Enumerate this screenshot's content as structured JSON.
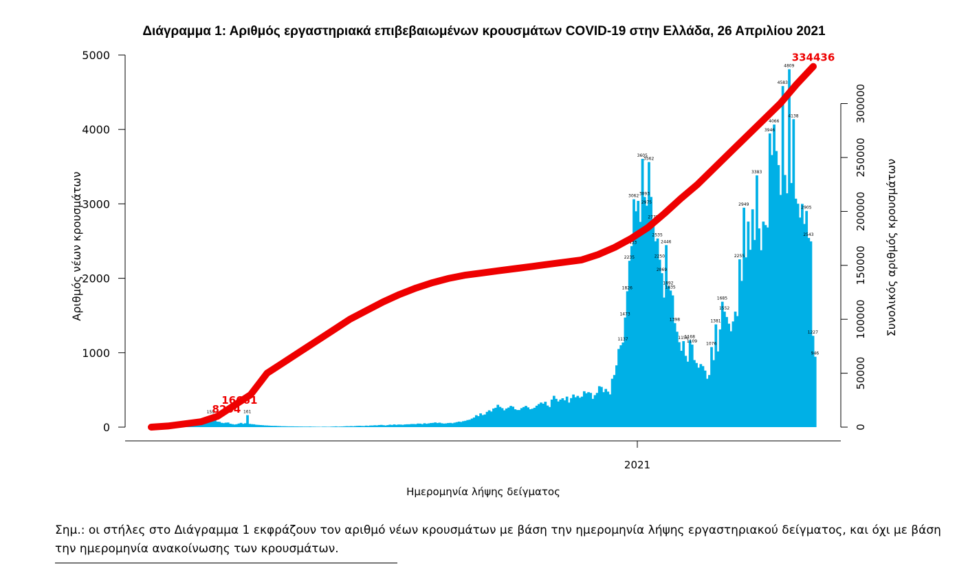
{
  "chart_data": {
    "type": "bar+line",
    "title": "Διάγραμμα 1: Αριθμός εργαστηριακά επιβεβαιωμένων κρουσμάτων COVID-19 στην Ελλάδα, 26 Απριλίου 2021",
    "xlabel": "Ημερομηνία λήψης δείγματος",
    "ylabel_left": "Αριθμός νέων κρουσμάτων",
    "ylabel_right": "Συνολικός αριθμός κρουσμάτων",
    "x_tick": "2021",
    "ylim_left": [
      0,
      5000
    ],
    "yticks_left": [
      0,
      1000,
      2000,
      3000,
      4000,
      5000
    ],
    "ylim_right": [
      0,
      345000
    ],
    "yticks_right": [
      0,
      50000,
      100000,
      150000,
      200000,
      250000,
      300000
    ],
    "bar_color": "#00b0e6",
    "line_color": "#ee0000",
    "line_labels": [
      "8264",
      "16661",
      "334436"
    ],
    "bar_peak_labels": [
      {
        "label": "159",
        "value": 159
      },
      {
        "label": "161",
        "value": 161
      },
      {
        "label": "1137",
        "value": 1137
      },
      {
        "label": "1473",
        "value": 1473
      },
      {
        "label": "1826",
        "value": 1826
      },
      {
        "label": "2235",
        "value": 2235
      },
      {
        "label": "2433",
        "value": 2433
      },
      {
        "label": "3062",
        "value": 3062
      },
      {
        "label": "3605",
        "value": 3605
      },
      {
        "label": "3562",
        "value": 3562
      },
      {
        "label": "3093",
        "value": 3093
      },
      {
        "label": "2975",
        "value": 2975
      },
      {
        "label": "2775",
        "value": 2775
      },
      {
        "label": "2535",
        "value": 2535
      },
      {
        "label": "2446",
        "value": 2446
      },
      {
        "label": "2250",
        "value": 2250
      },
      {
        "label": "2069",
        "value": 2069
      },
      {
        "label": "1892",
        "value": 1892
      },
      {
        "label": "1835",
        "value": 1835
      },
      {
        "label": "1398",
        "value": 1398
      },
      {
        "label": "1156",
        "value": 1156
      },
      {
        "label": "1168",
        "value": 1168
      },
      {
        "label": "1109",
        "value": 1109
      },
      {
        "label": "1076",
        "value": 1076
      },
      {
        "label": "1381",
        "value": 1381
      },
      {
        "label": "1685",
        "value": 1685
      },
      {
        "label": "1552",
        "value": 1552
      },
      {
        "label": "2255",
        "value": 2255
      },
      {
        "label": "2949",
        "value": 2949
      },
      {
        "label": "3383",
        "value": 3383
      },
      {
        "label": "3946",
        "value": 3946
      },
      {
        "label": "4066",
        "value": 4066
      },
      {
        "label": "4583",
        "value": 4583
      },
      {
        "label": "4809",
        "value": 4809
      },
      {
        "label": "4138",
        "value": 4138
      },
      {
        "label": "2905",
        "value": 2905
      },
      {
        "label": "2543",
        "value": 2543
      },
      {
        "label": "1227",
        "value": 1227
      },
      {
        "label": "946",
        "value": 946
      }
    ],
    "daily_new_cases": [
      0,
      0,
      2,
      4,
      6,
      5,
      7,
      8,
      10,
      12,
      16,
      20,
      30,
      42,
      49,
      59,
      70,
      88,
      86,
      90,
      83,
      107,
      95,
      111,
      116,
      119,
      124,
      159,
      107,
      98,
      74,
      72,
      58,
      54,
      60,
      62,
      46,
      40,
      35,
      39,
      48,
      57,
      44,
      52,
      161,
      44,
      40,
      38,
      32,
      30,
      28,
      26,
      23,
      22,
      20,
      18,
      17,
      17,
      15,
      14,
      12,
      12,
      11,
      10,
      10,
      10,
      9,
      9,
      8,
      8,
      7,
      7,
      7,
      8,
      6,
      6,
      5,
      5,
      4,
      6,
      6,
      5,
      5,
      7,
      8,
      10,
      7,
      8,
      9,
      11,
      13,
      12,
      14,
      12,
      15,
      17,
      18,
      16,
      15,
      20,
      17,
      22,
      22,
      25,
      23,
      28,
      30,
      26,
      22,
      27,
      33,
      29,
      36,
      30,
      35,
      34,
      31,
      36,
      38,
      38,
      42,
      42,
      40,
      48,
      47,
      40,
      52,
      45,
      50,
      55,
      57,
      63,
      55,
      60,
      52,
      48,
      50,
      55,
      57,
      52,
      60,
      67,
      74,
      70,
      80,
      85,
      95,
      100,
      115,
      129,
      160,
      148,
      185,
      162,
      170,
      205,
      226,
      210,
      250,
      260,
      300,
      272,
      255,
      226,
      250,
      263,
      285,
      275,
      240,
      230,
      230,
      255,
      270,
      285,
      265,
      240,
      247,
      260,
      288,
      310,
      330,
      315,
      341,
      290,
      270,
      370,
      421,
      380,
      345,
      370,
      388,
      360,
      410,
      330,
      390,
      438,
      401,
      420,
      395,
      410,
      482,
      455,
      470,
      460,
      380,
      430,
      460,
      550,
      540,
      470,
      513,
      477,
      440,
      650,
      700,
      830,
      1050,
      1100,
      1137,
      1473,
      1826,
      2235,
      2433,
      3062,
      2900,
      3040,
      2758,
      3605,
      3093,
      2975,
      3562,
      3093,
      2775,
      2497,
      2535,
      2250,
      2069,
      1741,
      2446,
      1892,
      1835,
      1770,
      1398,
      1282,
      1141,
      1026,
      1156,
      958,
      880,
      1168,
      1109,
      901,
      862,
      799,
      847,
      820,
      760,
      650,
      700,
      1076,
      900,
      1381,
      1017,
      1313,
      1685,
      1552,
      1480,
      1390,
      1288,
      1420,
      1552,
      1492,
      2255,
      1965,
      2949,
      2281,
      2762,
      2383,
      2927,
      2515,
      3383,
      2670,
      2377,
      2762,
      2715,
      2683,
      3946,
      3656,
      4066,
      3710,
      3521,
      3120,
      4583,
      3388,
      3142,
      4809,
      3280,
      4138,
      3070,
      3002,
      2816,
      3000,
      2730,
      2905,
      2543,
      2496,
      1227,
      946
    ],
    "cumulative_cases": [
      0,
      1000,
      3000,
      5000,
      10000,
      20000,
      30000,
      50000,
      60000,
      70000,
      80000,
      90000,
      100000,
      108000,
      116000,
      123000,
      129000,
      134000,
      138000,
      141000,
      143000,
      145000,
      147000,
      149000,
      151000,
      153000,
      155000,
      160000,
      166661,
      175000,
      185000,
      198000,
      212000,
      225000,
      240000,
      255000,
      270000,
      285000,
      300000,
      318000,
      334436
    ]
  },
  "note": "Σημ.: οι στήλες στο Διάγραμμα 1 εκφράζουν τον αριθμό νέων κρουσμάτων με βάση την ημερομηνία λήψης εργαστηριακού δείγματος, και όχι με βάση την ημερομηνία ανακοίνωσης των κρουσμάτων."
}
